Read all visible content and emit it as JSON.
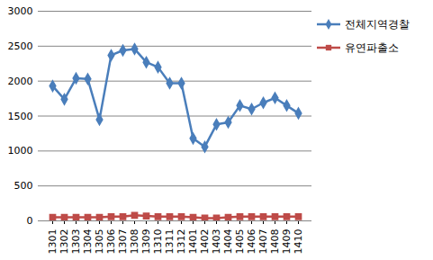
{
  "chart_data": {
    "type": "line",
    "categories": [
      "1301",
      "1302",
      "1303",
      "1304",
      "1305",
      "1306",
      "1307",
      "1308",
      "1309",
      "1310",
      "1311",
      "1312",
      "1401",
      "1402",
      "1403",
      "1404",
      "1405",
      "1406",
      "1407",
      "1408",
      "1409",
      "1410"
    ],
    "series": [
      {
        "name": "전체지역경찰",
        "color": "#4a7ebb",
        "marker": "diamond",
        "values": [
          1930,
          1740,
          2040,
          2030,
          1450,
          2370,
          2440,
          2460,
          2270,
          2200,
          1970,
          1970,
          1180,
          1060,
          1380,
          1410,
          1650,
          1600,
          1690,
          1760,
          1650,
          1540
        ]
      },
      {
        "name": "유연파출소",
        "color": "#be4b48",
        "marker": "square",
        "values": [
          50,
          50,
          50,
          50,
          50,
          60,
          60,
          80,
          70,
          60,
          60,
          60,
          50,
          40,
          40,
          50,
          60,
          60,
          60,
          60,
          60,
          60
        ]
      }
    ],
    "ylim": [
      0,
      3000
    ],
    "yticks": [
      0,
      500,
      1000,
      1500,
      2000,
      2500,
      3000
    ],
    "grid": true,
    "legend": "right"
  }
}
